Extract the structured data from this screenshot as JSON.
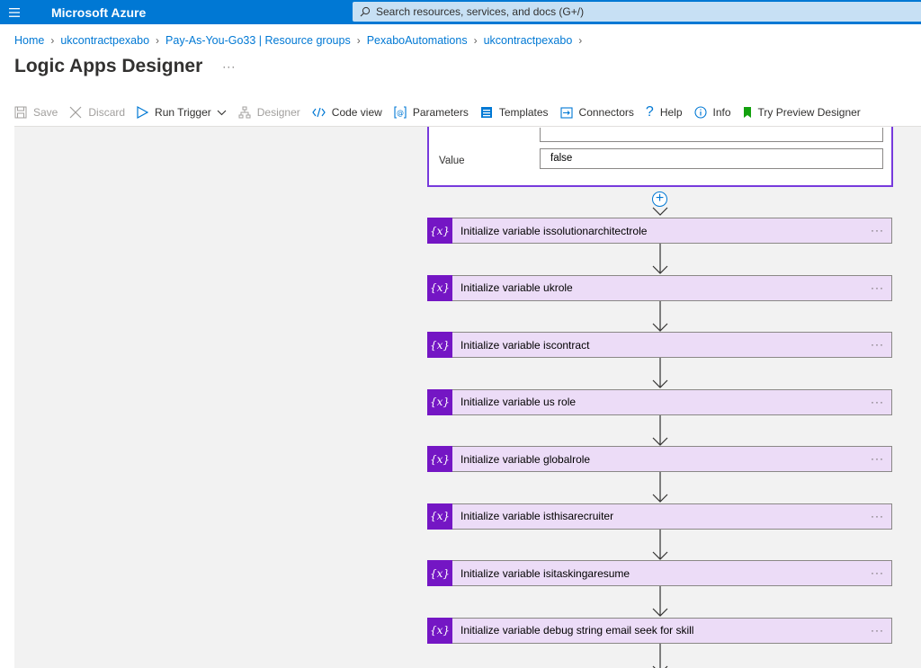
{
  "topbar": {
    "brand": "Microsoft Azure",
    "search_placeholder": "Search resources, services, and docs (G+/)",
    "accent": "#0078d4"
  },
  "breadcrumb": [
    "Home",
    "ukcontractpexabo",
    "Pay-As-You-Go33 | Resource groups",
    "PexaboAutomations",
    "ukcontractpexabo"
  ],
  "page": {
    "title": "Logic Apps Designer",
    "more": "···"
  },
  "toolbar": {
    "save": "Save",
    "discard": "Discard",
    "run_trigger": "Run Trigger",
    "designer": "Designer",
    "code_view": "Code view",
    "parameters": "Parameters",
    "templates": "Templates",
    "connectors": "Connectors",
    "help": "Help",
    "info": "Info",
    "try_preview": "Try Preview Designer"
  },
  "partial_card": {
    "label": "Value",
    "value": "false"
  },
  "actions": [
    {
      "badge": "{x}",
      "name": "Initialize variable issolutionarchitectrole"
    },
    {
      "badge": "{x}",
      "name": "Initialize variable ukrole"
    },
    {
      "badge": "{x}",
      "name": "Initialize variable iscontract"
    },
    {
      "badge": "{x}",
      "name": "Initialize variable us role"
    },
    {
      "badge": "{x}",
      "name": "Initialize variable globalrole"
    },
    {
      "badge": "{x}",
      "name": "Initialize variable isthisarecruiter"
    },
    {
      "badge": "{x}",
      "name": "Initialize variable isitaskingaresume"
    },
    {
      "badge": "{x}",
      "name": "Initialize variable debug string email seek for skill"
    }
  ],
  "action_menu": "···",
  "colors": {
    "action_bg": "#ecdcf7",
    "badge": "#7416c4",
    "selected_border": "#773adc"
  }
}
